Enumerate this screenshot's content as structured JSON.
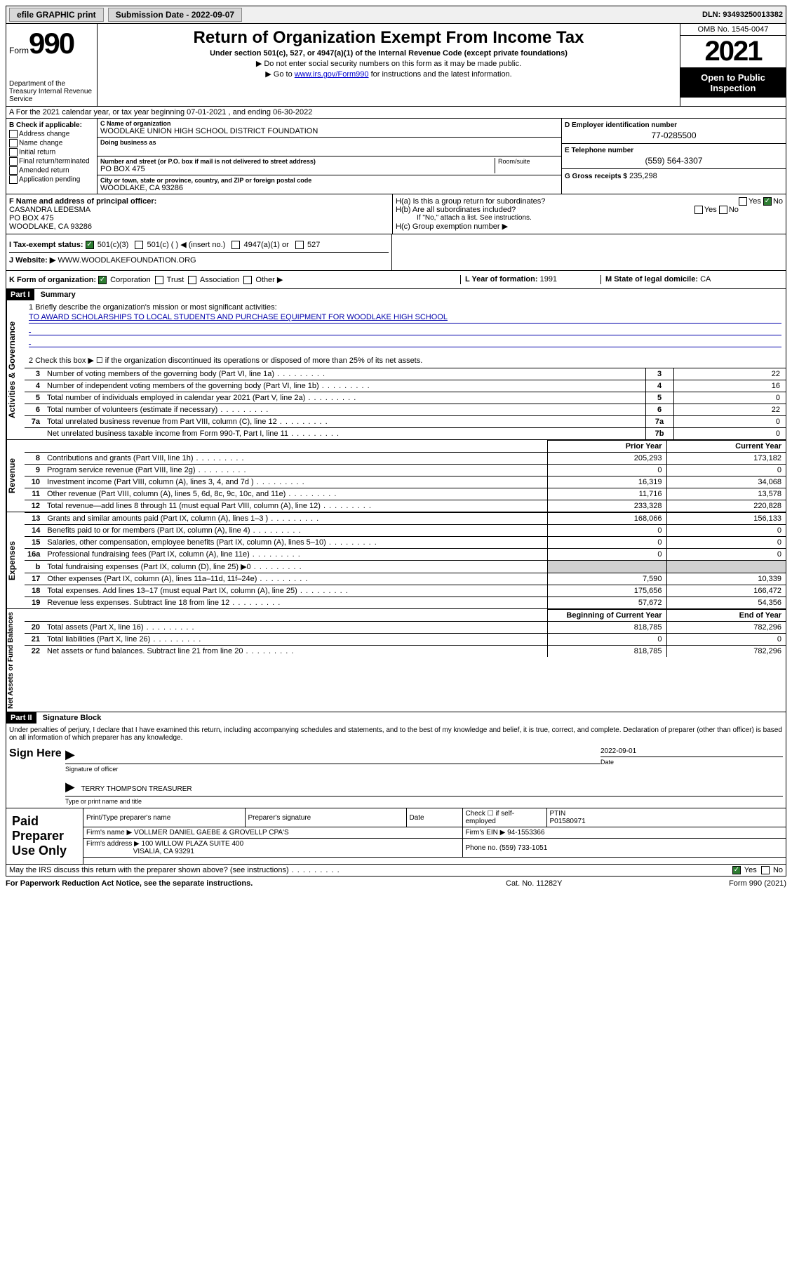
{
  "topbar": {
    "efile": "efile GRAPHIC print",
    "submission_label": "Submission Date - 2022-09-07",
    "dln_label": "DLN: 93493250013382"
  },
  "header": {
    "form_prefix": "Form",
    "form_number": "990",
    "dept": "Department of the Treasury\nInternal Revenue Service",
    "title": "Return of Organization Exempt From Income Tax",
    "subtitle": "Under section 501(c), 527, or 4947(a)(1) of the Internal Revenue Code (except private foundations)",
    "note1": "▶ Do not enter social security numbers on this form as it may be made public.",
    "note2_pre": "▶ Go to ",
    "note2_link": "www.irs.gov/Form990",
    "note2_post": " for instructions and the latest information.",
    "omb": "OMB No. 1545-0047",
    "year": "2021",
    "open": "Open to Public Inspection"
  },
  "row_a": "A For the 2021 calendar year, or tax year beginning 07-01-2021   , and ending 06-30-2022",
  "section_b": {
    "check_label": "B Check if applicable:",
    "checks": [
      "Address change",
      "Name change",
      "Initial return",
      "Final return/terminated",
      "Amended return",
      "Application pending"
    ],
    "c_name_lbl": "C Name of organization",
    "c_name": "WOODLAKE UNION HIGH SCHOOL DISTRICT FOUNDATION",
    "dba_lbl": "Doing business as",
    "addr_lbl": "Number and street (or P.O. box if mail is not delivered to street address)",
    "addr": "PO BOX 475",
    "room_lbl": "Room/suite",
    "city_lbl": "City or town, state or province, country, and ZIP or foreign postal code",
    "city": "WOODLAKE, CA  93286",
    "d_lbl": "D Employer identification number",
    "d_val": "77-0285500",
    "e_lbl": "E Telephone number",
    "e_val": "(559) 564-3307",
    "g_lbl": "G Gross receipts $",
    "g_val": "235,298"
  },
  "row_f": {
    "f_lbl": "F Name and address of principal officer:",
    "f_name": "CASANDRA LEDESMA",
    "f_addr1": "PO BOX 475",
    "f_addr2": "WOODLAKE, CA  93286",
    "ha_lbl": "H(a)  Is this a group return for subordinates?",
    "hb_lbl": "H(b)  Are all subordinates included?",
    "hb_note": "If \"No,\" attach a list. See instructions.",
    "hc_lbl": "H(c)  Group exemption number ▶",
    "yes": "Yes",
    "no": "No"
  },
  "row_i": {
    "i_lbl": "I   Tax-exempt status:",
    "i_opts": [
      "501(c)(3)",
      "501(c) (  ) ◀ (insert no.)",
      "4947(a)(1) or",
      "527"
    ],
    "j_lbl": "J   Website: ▶",
    "j_val": "WWW.WOODLAKEFOUNDATION.ORG"
  },
  "row_k": {
    "k_lbl": "K Form of organization:",
    "k_opts": [
      "Corporation",
      "Trust",
      "Association",
      "Other ▶"
    ],
    "l_lbl": "L Year of formation:",
    "l_val": "1991",
    "m_lbl": "M State of legal domicile:",
    "m_val": "CA"
  },
  "part1": {
    "header": "Part I",
    "title": "Summary",
    "line1_lbl": "1  Briefly describe the organization's mission or most significant activities:",
    "line1_val": "TO AWARD SCHOLARSHIPS TO LOCAL STUDENTS AND PURCHASE EQUIPMENT FOR WOODLAKE HIGH SCHOOL",
    "line2": "2  Check this box ▶ ☐  if the organization discontinued its operations or disposed of more than 25% of its net assets.",
    "sidebar1": "Activities & Governance",
    "sidebar2": "Revenue",
    "sidebar3": "Expenses",
    "sidebar4": "Net Assets or Fund Balances",
    "gov_rows": [
      {
        "n": "3",
        "t": "Number of voting members of the governing body (Part VI, line 1a)",
        "k": "3",
        "v": "22"
      },
      {
        "n": "4",
        "t": "Number of independent voting members of the governing body (Part VI, line 1b)",
        "k": "4",
        "v": "16"
      },
      {
        "n": "5",
        "t": "Total number of individuals employed in calendar year 2021 (Part V, line 2a)",
        "k": "5",
        "v": "0"
      },
      {
        "n": "6",
        "t": "Total number of volunteers (estimate if necessary)",
        "k": "6",
        "v": "22"
      },
      {
        "n": "7a",
        "t": "Total unrelated business revenue from Part VIII, column (C), line 12",
        "k": "7a",
        "v": "0"
      },
      {
        "n": "",
        "t": "Net unrelated business taxable income from Form 990-T, Part I, line 11",
        "k": "7b",
        "v": "0"
      }
    ],
    "col_prior": "Prior Year",
    "col_curr": "Current Year",
    "rev_rows": [
      {
        "n": "8",
        "t": "Contributions and grants (Part VIII, line 1h)",
        "p": "205,293",
        "c": "173,182"
      },
      {
        "n": "9",
        "t": "Program service revenue (Part VIII, line 2g)",
        "p": "0",
        "c": "0"
      },
      {
        "n": "10",
        "t": "Investment income (Part VIII, column (A), lines 3, 4, and 7d )",
        "p": "16,319",
        "c": "34,068"
      },
      {
        "n": "11",
        "t": "Other revenue (Part VIII, column (A), lines 5, 6d, 8c, 9c, 10c, and 11e)",
        "p": "11,716",
        "c": "13,578"
      },
      {
        "n": "12",
        "t": "Total revenue—add lines 8 through 11 (must equal Part VIII, column (A), line 12)",
        "p": "233,328",
        "c": "220,828"
      }
    ],
    "exp_rows": [
      {
        "n": "13",
        "t": "Grants and similar amounts paid (Part IX, column (A), lines 1–3 )",
        "p": "168,066",
        "c": "156,133"
      },
      {
        "n": "14",
        "t": "Benefits paid to or for members (Part IX, column (A), line 4)",
        "p": "0",
        "c": "0"
      },
      {
        "n": "15",
        "t": "Salaries, other compensation, employee benefits (Part IX, column (A), lines 5–10)",
        "p": "0",
        "c": "0"
      },
      {
        "n": "16a",
        "t": "Professional fundraising fees (Part IX, column (A), line 11e)",
        "p": "0",
        "c": "0"
      },
      {
        "n": "b",
        "t": "Total fundraising expenses (Part IX, column (D), line 25) ▶0",
        "p": "",
        "c": "",
        "shade": true
      },
      {
        "n": "17",
        "t": "Other expenses (Part IX, column (A), lines 11a–11d, 11f–24e)",
        "p": "7,590",
        "c": "10,339"
      },
      {
        "n": "18",
        "t": "Total expenses. Add lines 13–17 (must equal Part IX, column (A), line 25)",
        "p": "175,656",
        "c": "166,472"
      },
      {
        "n": "19",
        "t": "Revenue less expenses. Subtract line 18 from line 12",
        "p": "57,672",
        "c": "54,356"
      }
    ],
    "col_bcy": "Beginning of Current Year",
    "col_eoy": "End of Year",
    "net_rows": [
      {
        "n": "20",
        "t": "Total assets (Part X, line 16)",
        "p": "818,785",
        "c": "782,296"
      },
      {
        "n": "21",
        "t": "Total liabilities (Part X, line 26)",
        "p": "0",
        "c": "0"
      },
      {
        "n": "22",
        "t": "Net assets or fund balances. Subtract line 21 from line 20",
        "p": "818,785",
        "c": "782,296"
      }
    ]
  },
  "part2": {
    "header": "Part II",
    "title": "Signature Block",
    "penalties": "Under penalties of perjury, I declare that I have examined this return, including accompanying schedules and statements, and to the best of my knowledge and belief, it is true, correct, and complete. Declaration of preparer (other than officer) is based on all information of which preparer has any knowledge.",
    "sign_here": "Sign Here",
    "sig_officer_lbl": "Signature of officer",
    "sig_date": "2022-09-01",
    "date_lbl": "Date",
    "officer_name": "TERRY THOMPSON  TREASURER",
    "officer_lbl": "Type or print name and title",
    "paid_lbl": "Paid Preparer Use Only",
    "prep_name_lbl": "Print/Type preparer's name",
    "prep_sig_lbl": "Preparer's signature",
    "prep_date_lbl": "Date",
    "check_if": "Check ☐ if self-employed",
    "ptin_lbl": "PTIN",
    "ptin_val": "P01580971",
    "firm_name_lbl": "Firm's name      ▶",
    "firm_name": "VOLLMER DANIEL GAEBE & GROVELLP CPA'S",
    "firm_ein_lbl": "Firm's EIN ▶",
    "firm_ein": "94-1553366",
    "firm_addr_lbl": "Firm's address ▶",
    "firm_addr1": "100 WILLOW PLAZA SUITE 400",
    "firm_addr2": "VISALIA, CA  93291",
    "phone_lbl": "Phone no.",
    "phone_val": "(559) 733-1051",
    "discuss": "May the IRS discuss this return with the preparer shown above? (see instructions)"
  },
  "footer": {
    "left": "For Paperwork Reduction Act Notice, see the separate instructions.",
    "mid": "Cat. No. 11282Y",
    "right": "Form 990 (2021)"
  }
}
